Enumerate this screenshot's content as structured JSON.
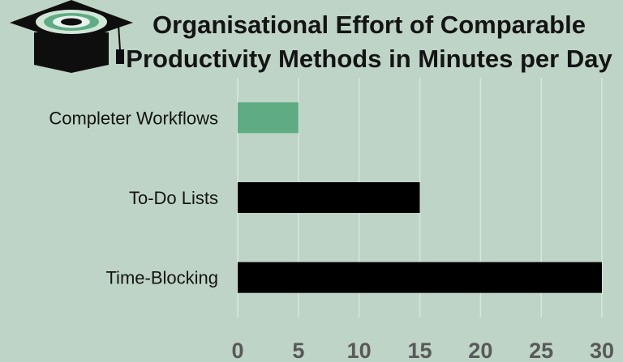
{
  "chart_data": {
    "type": "bar",
    "orientation": "horizontal",
    "title_lines": [
      "Organisational Effort of Comparable",
      "Productivity Methods in Minutes per Day"
    ],
    "categories": [
      "Completer Workflows",
      "To-Do Lists",
      "Time-Blocking"
    ],
    "values": [
      5,
      15,
      30
    ],
    "bar_colors": [
      "#5fac84",
      "#000000",
      "#000000"
    ],
    "xlim": [
      0,
      30
    ],
    "x_ticks": [
      0,
      5,
      10,
      15,
      20,
      25,
      30
    ],
    "grid": "vertical",
    "legend": "none",
    "xlabel": "",
    "ylabel": ""
  },
  "colors": {
    "background": "#bdd4c6",
    "gridline": "#d8e6dd",
    "tick_label": "#595959",
    "category_label": "#141414"
  },
  "logo": {
    "icon": "graduation-cap-icon"
  }
}
